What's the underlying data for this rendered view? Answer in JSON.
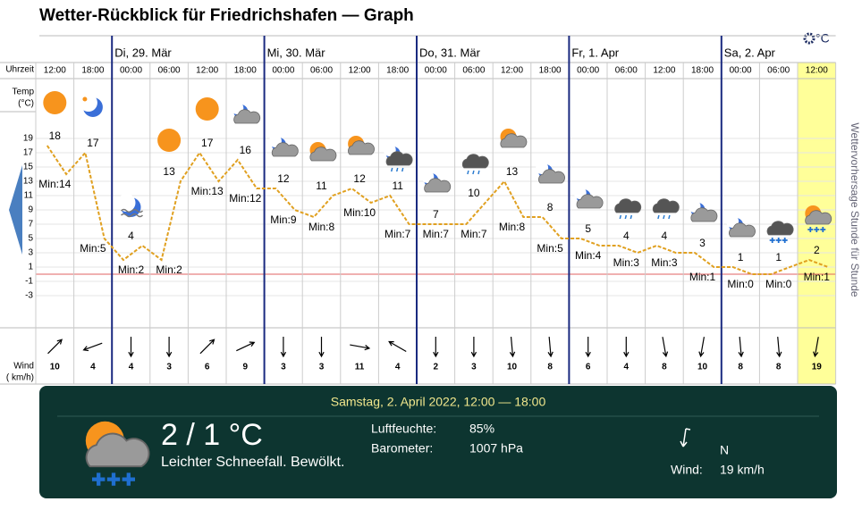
{
  "title": "Wetter-Rückblick für Friedrichshafen — Graph",
  "unit": "°C",
  "labels": {
    "time": "Uhrzeit",
    "temp": "Temp",
    "temp_unit": "(°C)",
    "wind": "Wind",
    "wind_unit": "( km/h)"
  },
  "side_link": "Wettervorhersage Stunde für Stunde",
  "days": [
    "Di, 29. Mär",
    "Mi, 30. Mär",
    "Do, 31. Mär",
    "Fr, 1. Apr",
    "Sa, 2. Apr"
  ],
  "temp_axis": {
    "ylim": [
      -7,
      23
    ],
    "yticks": [
      19,
      17,
      15,
      13,
      11,
      9,
      7,
      5,
      3,
      1,
      -1,
      -3
    ],
    "reference": 0
  },
  "columns": [
    {
      "time": "12:00",
      "max": 18,
      "min": 14,
      "min_label": "Min:14",
      "wind": 10,
      "wind_dir": 45
    },
    {
      "time": "18:00",
      "max": 17,
      "min": 5,
      "min_label": "Min:5",
      "wind": 4,
      "wind_dir": 250
    },
    {
      "time": "00:00",
      "max": 4,
      "min": 2,
      "min_label": "Min:2",
      "wind": 4,
      "wind_dir": 180
    },
    {
      "time": "06:00",
      "max": 13,
      "min": 2,
      "min_label": "Min:2",
      "wind": 3,
      "wind_dir": 180
    },
    {
      "time": "12:00",
      "max": 17,
      "min": 13,
      "min_label": "Min:13",
      "wind": 6,
      "wind_dir": 45
    },
    {
      "time": "18:00",
      "max": 16,
      "min": 12,
      "min_label": "Min:12",
      "wind": 9,
      "wind_dir": 65
    },
    {
      "time": "00:00",
      "max": 12,
      "min": 9,
      "min_label": "Min:9",
      "wind": 3,
      "wind_dir": 180
    },
    {
      "time": "06:00",
      "max": 11,
      "min": 8,
      "min_label": "Min:8",
      "wind": 3,
      "wind_dir": 180
    },
    {
      "time": "12:00",
      "max": 12,
      "min": 10,
      "min_label": "Min:10",
      "wind": 11,
      "wind_dir": 100
    },
    {
      "time": "18:00",
      "max": 11,
      "min": 7,
      "min_label": "Min:7",
      "wind": 4,
      "wind_dir": 300
    },
    {
      "time": "00:00",
      "max": 7,
      "min": 7,
      "min_label": "Min:7",
      "wind": 2,
      "wind_dir": 180
    },
    {
      "time": "06:00",
      "max": 10,
      "min": 7,
      "min_label": "Min:7",
      "wind": 3,
      "wind_dir": 180
    },
    {
      "time": "12:00",
      "max": 13,
      "min": 8,
      "min_label": "Min:8",
      "wind": 10,
      "wind_dir": 175
    },
    {
      "time": "18:00",
      "max": 8,
      "min": 5,
      "min_label": "Min:5",
      "wind": 8,
      "wind_dir": 175
    },
    {
      "time": "00:00",
      "max": 5,
      "min": 4,
      "min_label": "Min:4",
      "wind": 6,
      "wind_dir": 180
    },
    {
      "time": "06:00",
      "max": 4,
      "min": 3,
      "min_label": "Min:3",
      "wind": 4,
      "wind_dir": 180
    },
    {
      "time": "12:00",
      "max": 4,
      "min": 3,
      "min_label": "Min:3",
      "wind": 8,
      "wind_dir": 170
    },
    {
      "time": "18:00",
      "max": 3,
      "min": 1,
      "min_label": "Min:1",
      "wind": 10,
      "wind_dir": 190
    },
    {
      "time": "00:00",
      "max": 1,
      "min": 0,
      "min_label": "Min:0",
      "wind": 8,
      "wind_dir": 175
    },
    {
      "time": "06:00",
      "max": 1,
      "min": 0,
      "min_label": "Min:0",
      "wind": 8,
      "wind_dir": 175
    },
    {
      "time": "12:00",
      "max": 2,
      "min": 1,
      "min_label": "Min:1",
      "wind": 19,
      "wind_dir": 190
    }
  ],
  "detail": {
    "date": "Samstag, 2. April 2022, 12:00 — 18:00",
    "temp": "2 / 1 °C",
    "condition": "Leichter Schneefall. Bewölkt.",
    "humidity_label": "Luftfeuchte:",
    "humidity": "85%",
    "pressure_label": "Barometer:",
    "pressure": "1007 hPa",
    "wind_dir_label": "N",
    "wind_label": "Wind:",
    "wind": "19 km/h"
  }
}
